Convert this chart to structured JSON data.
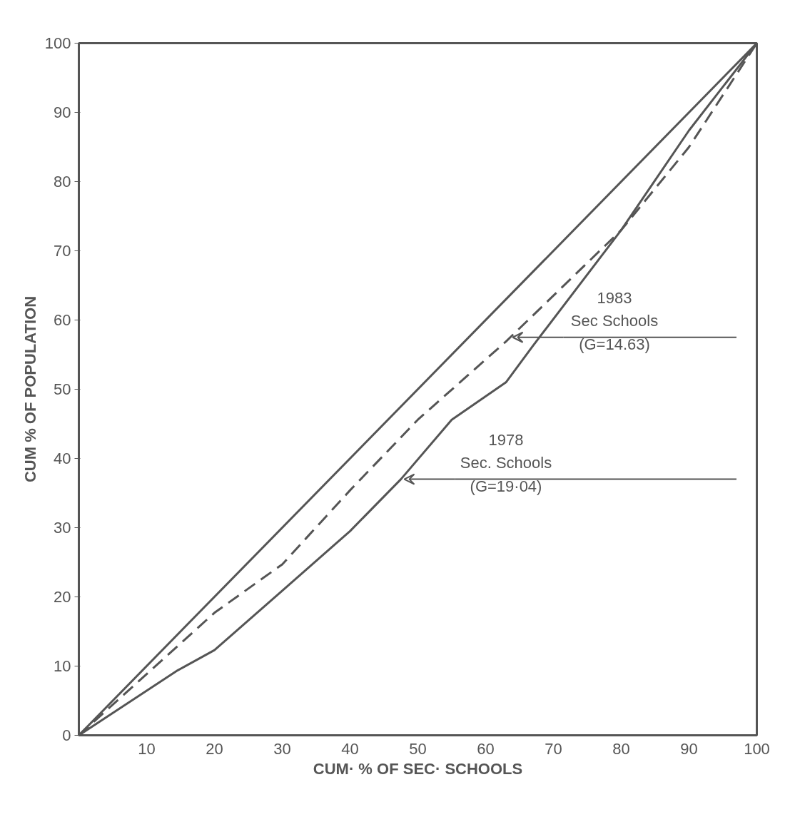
{
  "chart_data": {
    "type": "line",
    "xlabel": "CUM· % OF SEC· SCHOOLS",
    "ylabel": "CUM % OF POPULATION",
    "xlim": [
      0,
      100
    ],
    "ylim": [
      0,
      100
    ],
    "xticks": [
      10,
      20,
      30,
      40,
      50,
      60,
      70,
      80,
      90,
      100
    ],
    "yticks": [
      0,
      10,
      20,
      30,
      40,
      50,
      60,
      70,
      80,
      90,
      100
    ],
    "grid": false,
    "marker": "none",
    "series": [
      {
        "color": "#555555",
        "line_style": "solid",
        "x": [
          0,
          100
        ],
        "values": [
          0,
          100
        ]
      },
      {
        "color": "#555555",
        "line_style": "dashed",
        "x": [
          0,
          20,
          30,
          40,
          50,
          63,
          80,
          90,
          100
        ],
        "values": [
          0,
          17.7,
          24.7,
          35.4,
          45.6,
          56.9,
          73,
          85,
          100
        ]
      },
      {
        "color": "#555555",
        "line_style": "solid",
        "x": [
          0,
          14.6,
          20,
          30,
          40,
          47.5,
          55,
          63,
          67,
          80,
          90,
          100
        ],
        "values": [
          0,
          9.4,
          12.3,
          20.9,
          29.5,
          37,
          45.6,
          51,
          56.3,
          73,
          87.4,
          100
        ]
      }
    ],
    "annotations": [
      {
        "text": "1983\nSec Schools\n(G=14.63)",
        "x": 64,
        "y": 57.5
      },
      {
        "text": "1978\nSec. Schools\n(G=19·04)",
        "x": 48,
        "y": 37
      }
    ]
  }
}
